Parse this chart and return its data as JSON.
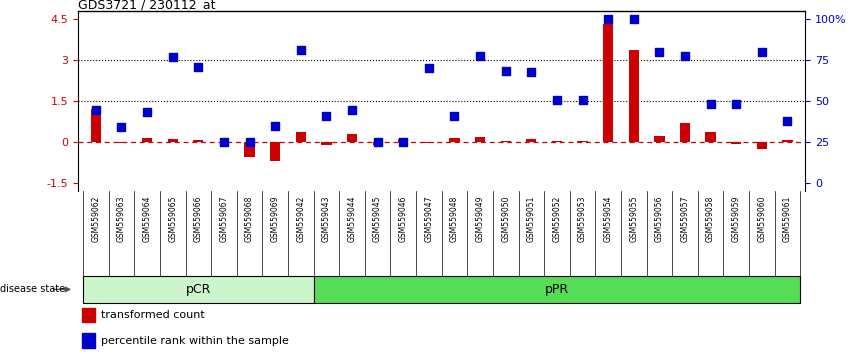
{
  "title": "GDS3721 / 230112_at",
  "samples": [
    "GSM559062",
    "GSM559063",
    "GSM559064",
    "GSM559065",
    "GSM559066",
    "GSM559067",
    "GSM559068",
    "GSM559069",
    "GSM559042",
    "GSM559043",
    "GSM559044",
    "GSM559045",
    "GSM559046",
    "GSM559047",
    "GSM559048",
    "GSM559049",
    "GSM559050",
    "GSM559051",
    "GSM559052",
    "GSM559053",
    "GSM559054",
    "GSM559055",
    "GSM559056",
    "GSM559057",
    "GSM559058",
    "GSM559059",
    "GSM559060",
    "GSM559061"
  ],
  "transformed_count": [
    1.2,
    -0.05,
    0.15,
    0.12,
    0.08,
    -0.05,
    -0.55,
    -0.7,
    0.35,
    -0.1,
    0.3,
    -0.12,
    0.12,
    -0.05,
    0.15,
    0.18,
    0.05,
    0.12,
    0.05,
    0.05,
    4.3,
    3.35,
    0.2,
    0.7,
    0.35,
    -0.08,
    -0.25,
    0.08
  ],
  "percentile_rank": [
    1.15,
    0.55,
    1.1,
    3.1,
    2.75,
    0.0,
    0.0,
    0.6,
    3.35,
    0.95,
    1.15,
    0.0,
    0.0,
    2.7,
    0.95,
    3.15,
    2.6,
    2.55,
    1.55,
    1.55,
    4.5,
    4.5,
    3.3,
    3.15,
    1.4,
    1.4,
    3.3,
    0.75
  ],
  "pCR_count": 9,
  "pPR_count": 19,
  "ylim": [
    -1.8,
    4.8
  ],
  "left_axis_ticks": [
    -1.5,
    0.0,
    1.5,
    3.0,
    4.5
  ],
  "left_axis_labels": [
    "-1.5",
    "0",
    "1.5",
    "3",
    "4.5"
  ],
  "right_tick_positions": [
    -1.5,
    0.0,
    1.5,
    3.0,
    4.5
  ],
  "right_axis_labels": [
    "0",
    "25",
    "50",
    "75",
    "100%"
  ],
  "hline_y": [
    1.5,
    3.0
  ],
  "red_color": "#CC0000",
  "blue_color": "#0000CC",
  "pCR_color": "#ccf5cc",
  "pPR_color": "#55dd55",
  "bar_width": 0.4,
  "marker_size": 36,
  "tick_label_bg": "#d0d0d0",
  "label_band_color": "#c8c8c8"
}
